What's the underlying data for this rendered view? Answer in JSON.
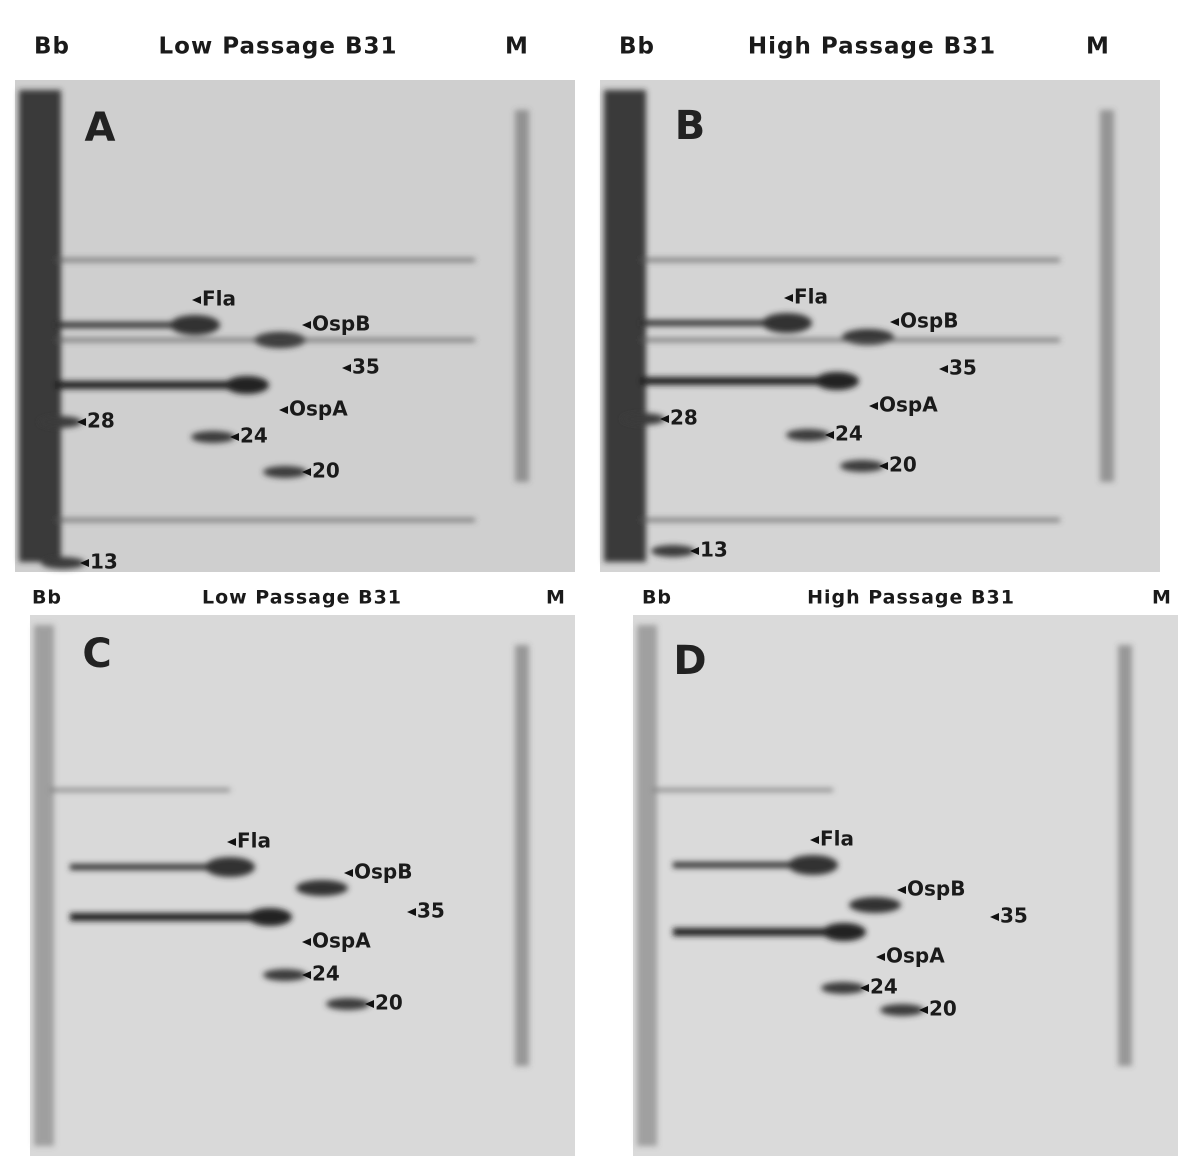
{
  "panels": [
    {
      "letter": "A",
      "lane_left": "Bb",
      "title": "Low Passage B31",
      "lane_right": "M",
      "labels": [
        "Fla",
        "OspB",
        "35",
        "OspA",
        "28",
        "24",
        "20",
        "13"
      ]
    },
    {
      "letter": "B",
      "lane_left": "Bb",
      "title": "High Passage B31",
      "lane_right": "M",
      "labels": [
        "Fla",
        "OspB",
        "35",
        "OspA",
        "28",
        "24",
        "20",
        "13"
      ]
    },
    {
      "letter": "C",
      "lane_left": "Bb",
      "title": "Low Passage B31",
      "lane_right": "M",
      "labels": [
        "Fla",
        "OspB",
        "35",
        "OspA",
        "24",
        "20"
      ]
    },
    {
      "letter": "D",
      "lane_left": "Bb",
      "title": "High Passage B31",
      "lane_right": "M",
      "labels": [
        "Fla",
        "OspB",
        "35",
        "OspA",
        "24",
        "20"
      ]
    }
  ]
}
